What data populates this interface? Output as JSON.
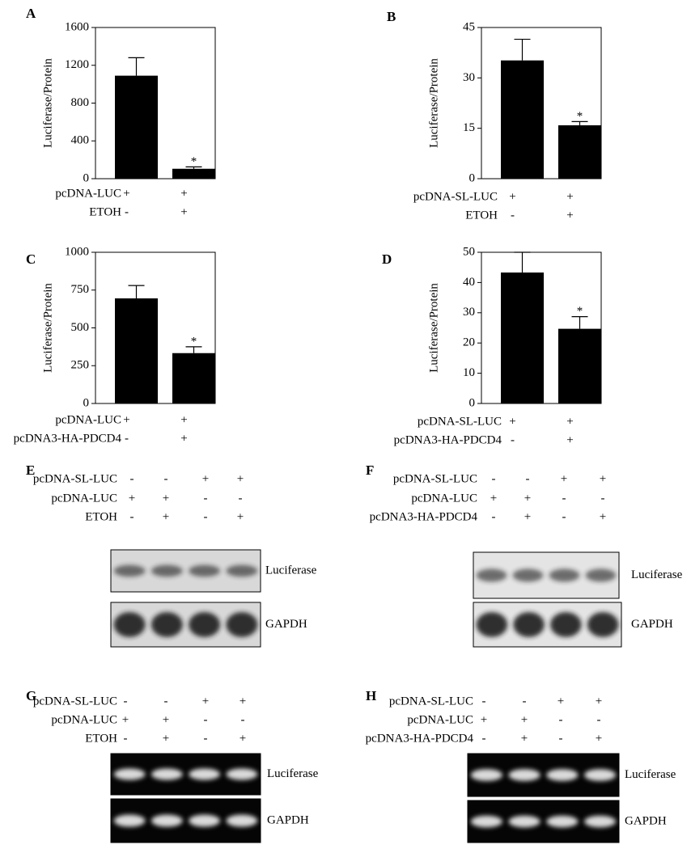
{
  "chart_data": [
    {
      "type": "bar",
      "label": "A",
      "ylabel": "Luciferase/Protein",
      "values": [
        1090,
        105
      ],
      "errors": [
        190,
        20
      ],
      "annotations": [
        null,
        "*"
      ],
      "ylim": [
        0,
        1600
      ],
      "yticks": [
        0,
        400,
        800,
        1200,
        1600
      ],
      "color": "#000000",
      "conditions": [
        {
          "name": "pcDNA-LUC",
          "values": [
            "+",
            "+"
          ]
        },
        {
          "name": "ETOH",
          "values": [
            "-",
            "+"
          ]
        }
      ]
    },
    {
      "type": "bar",
      "label": "B",
      "ylabel": "Luciferase/Protein",
      "values": [
        35.2,
        15.9
      ],
      "errors": [
        6.3,
        1.1
      ],
      "annotations": [
        null,
        "*"
      ],
      "ylim": [
        0,
        45
      ],
      "yticks": [
        0,
        15,
        30,
        45
      ],
      "color": "#000000",
      "conditions": [
        {
          "name": "pcDNA-SL-LUC",
          "values": [
            "+",
            "+"
          ]
        },
        {
          "name": "ETOH",
          "values": [
            "-",
            "+"
          ]
        }
      ]
    },
    {
      "type": "bar",
      "label": "C",
      "ylabel": "Luciferase/Protein",
      "values": [
        695,
        333
      ],
      "errors": [
        85,
        42
      ],
      "annotations": [
        null,
        "*"
      ],
      "ylim": [
        0,
        1000
      ],
      "yticks": [
        0,
        250,
        500,
        750,
        1000
      ],
      "color": "#000000",
      "conditions": [
        {
          "name": "pcDNA-LUC",
          "values": [
            "+",
            "+"
          ]
        },
        {
          "name": "pcDNA3-HA-PDCD4",
          "values": [
            "-",
            "+"
          ]
        }
      ]
    },
    {
      "type": "bar",
      "label": "D",
      "ylabel": "Luciferase/Protein",
      "values": [
        43.3,
        24.7
      ],
      "errors": [
        6.7,
        4.0
      ],
      "annotations": [
        null,
        "*"
      ],
      "ylim": [
        0,
        50
      ],
      "yticks": [
        0,
        10,
        20,
        30,
        40,
        50
      ],
      "color": "#000000",
      "conditions": [
        {
          "name": "pcDNA-SL-LUC",
          "values": [
            "+",
            "+"
          ]
        },
        {
          "name": "pcDNA3-HA-PDCD4",
          "values": [
            "-",
            "+"
          ]
        }
      ]
    }
  ],
  "blots": [
    {
      "label": "E",
      "background": "#d8d8d8",
      "band_color": "#1a1a1a",
      "bands": [
        "Luciferase",
        "GAPDH"
      ],
      "conditions": [
        {
          "name": "pcDNA-SL-LUC",
          "values": [
            "-",
            "-",
            "+",
            "+"
          ]
        },
        {
          "name": "pcDNA-LUC",
          "values": [
            "+",
            "+",
            "-",
            "-"
          ]
        },
        {
          "name": "ETOH",
          "values": [
            "-",
            "+",
            "-",
            "+"
          ]
        }
      ]
    },
    {
      "label": "F",
      "background": "#e4e4e4",
      "band_color": "#1a1a1a",
      "bands": [
        "Luciferase",
        "GAPDH"
      ],
      "conditions": [
        {
          "name": "pcDNA-SL-LUC",
          "values": [
            "-",
            "-",
            "+",
            "+"
          ]
        },
        {
          "name": "pcDNA-LUC",
          "values": [
            "+",
            "+",
            "-",
            "-"
          ]
        },
        {
          "name": "pcDNA3-HA-PDCD4",
          "values": [
            "-",
            "+",
            "-",
            "+"
          ]
        }
      ]
    },
    {
      "label": "G",
      "background": "#050505",
      "band_color": "#f2f2f2",
      "bands": [
        "Luciferase",
        "GAPDH"
      ],
      "conditions": [
        {
          "name": "pcDNA-SL-LUC",
          "values": [
            "-",
            "-",
            "+",
            "+"
          ]
        },
        {
          "name": "pcDNA-LUC",
          "values": [
            "+",
            "+",
            "-",
            "-"
          ]
        },
        {
          "name": "ETOH",
          "values": [
            "-",
            "+",
            "-",
            "+"
          ]
        }
      ]
    },
    {
      "label": "H",
      "background": "#050505",
      "band_color": "#f2f2f2",
      "bands": [
        "Luciferase",
        "GAPDH"
      ],
      "conditions": [
        {
          "name": "pcDNA-SL-LUC",
          "values": [
            "-",
            "-",
            "+",
            "+"
          ]
        },
        {
          "name": "pcDNA-LUC",
          "values": [
            "+",
            "+",
            "-",
            "-"
          ]
        },
        {
          "name": "pcDNA3-HA-PDCD4",
          "values": [
            "-",
            "+",
            "-",
            "+"
          ]
        }
      ]
    }
  ]
}
